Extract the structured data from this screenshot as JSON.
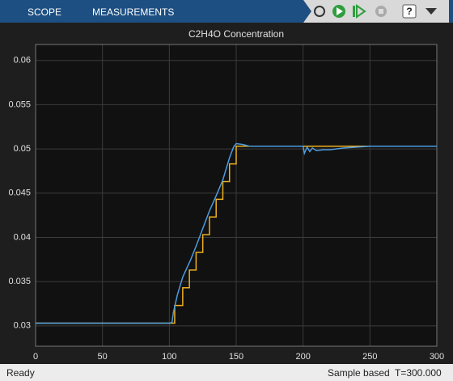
{
  "toolbar": {
    "tabs": [
      "SCOPE",
      "MEASUREMENTS"
    ]
  },
  "chart_data": {
    "type": "line",
    "title": "C2H4O Concentration",
    "xlim": [
      0,
      300
    ],
    "xticks": [
      0,
      50,
      100,
      150,
      200,
      250,
      300
    ],
    "ylim": [
      0.0277,
      0.0618
    ],
    "yticks": [
      0.03,
      0.035,
      0.04,
      0.045,
      0.05,
      0.055,
      0.06
    ],
    "grid": true,
    "series": [
      {
        "color": "#edb120",
        "step": true,
        "x": [
          0,
          104,
          110,
          115,
          120,
          125,
          130,
          135,
          140,
          145,
          150,
          300
        ],
        "values": [
          0.0303,
          0.0323,
          0.0343,
          0.0363,
          0.0383,
          0.0403,
          0.0423,
          0.0443,
          0.0463,
          0.0483,
          0.0503,
          0.0503
        ]
      },
      {
        "color": "#4d9de0",
        "step": false,
        "x": [
          0,
          100,
          102,
          103,
          106,
          110,
          113,
          116,
          120,
          125,
          130,
          135,
          140,
          145,
          148,
          150,
          155,
          160,
          200,
          201,
          203,
          205,
          207,
          210,
          215,
          220,
          230,
          250,
          300
        ],
        "values": [
          0.0303,
          0.0303,
          0.0304,
          0.0315,
          0.0335,
          0.0355,
          0.0365,
          0.0375,
          0.039,
          0.041,
          0.043,
          0.0447,
          0.0465,
          0.049,
          0.0502,
          0.0506,
          0.0505,
          0.0503,
          0.0503,
          0.0495,
          0.0502,
          0.0497,
          0.0501,
          0.0498,
          0.0499,
          0.0499,
          0.0501,
          0.0503,
          0.0503
        ]
      }
    ]
  },
  "status": {
    "left": "Ready",
    "mode": "Sample based",
    "time": "T=300.000"
  }
}
